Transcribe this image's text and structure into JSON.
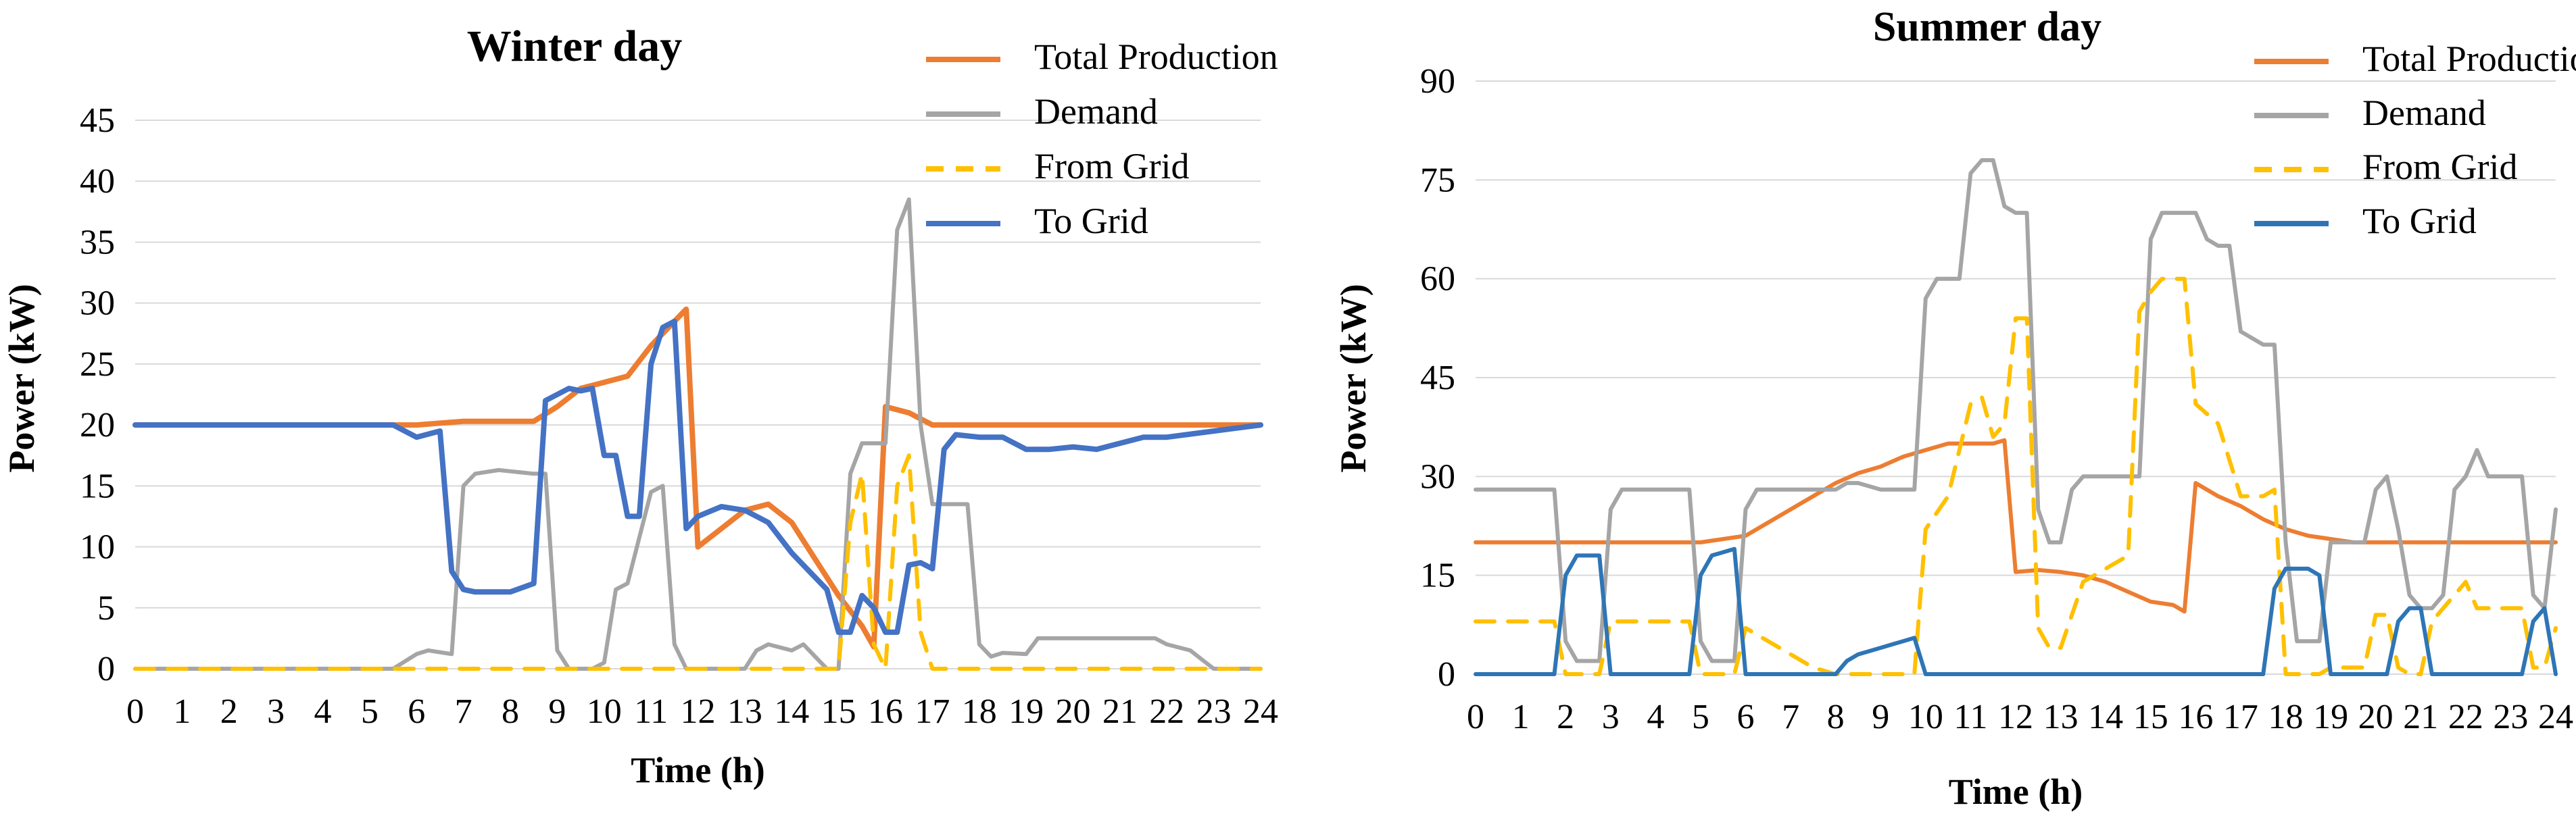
{
  "chart_data": [
    {
      "type": "line",
      "title": "Winter day",
      "xlabel": "Time (h)",
      "ylabel": "Power (kW)",
      "xlim": [
        0,
        24
      ],
      "ylim": [
        0,
        45
      ],
      "yticks": [
        0,
        5,
        10,
        15,
        20,
        25,
        30,
        35,
        40,
        45
      ],
      "xticks": [
        0,
        1,
        2,
        3,
        4,
        5,
        6,
        7,
        8,
        9,
        10,
        11,
        12,
        13,
        14,
        15,
        16,
        17,
        18,
        19,
        20,
        21,
        22,
        23,
        24
      ],
      "grid": true,
      "legend_position": "top-right",
      "series": [
        {
          "name": "Total Production",
          "color": "#ed7d31",
          "dash": "solid",
          "x": [
            0,
            6,
            7,
            8.5,
            9,
            9.5,
            10,
            10.5,
            11,
            11.5,
            11.75,
            12,
            12.5,
            13,
            13.5,
            14,
            14.5,
            15,
            15.5,
            15.75,
            16,
            16.5,
            17,
            18,
            24
          ],
          "y": [
            20,
            20,
            20.3,
            20.3,
            21.5,
            23,
            23.5,
            24,
            26.5,
            28.5,
            29.5,
            10,
            11.5,
            13,
            13.5,
            12,
            9,
            6,
            3.5,
            1.8,
            21.5,
            21,
            20,
            20,
            20
          ]
        },
        {
          "name": "Demand",
          "color": "#a5a5a5",
          "dash": "solid",
          "x": [
            0,
            5.5,
            6,
            6.25,
            6.75,
            7,
            7.25,
            7.75,
            8,
            8.5,
            8.75,
            9,
            9.25,
            9.75,
            10,
            10.25,
            10.5,
            11,
            11.25,
            11.5,
            11.75,
            12,
            13,
            13.25,
            13.5,
            14,
            14.25,
            14.5,
            14.75,
            15,
            15.25,
            15.5,
            15.75,
            16,
            16.25,
            16.5,
            16.75,
            17,
            17.5,
            17.75,
            18,
            18.25,
            18.5,
            19,
            19.25,
            19.75,
            20,
            20.5,
            21,
            21.5,
            21.75,
            22,
            22.5,
            23,
            24
          ],
          "y": [
            0,
            0,
            1.2,
            1.5,
            1.2,
            15,
            16,
            16.3,
            16.2,
            16,
            16,
            1.5,
            0,
            0,
            0.5,
            6.5,
            7,
            14.5,
            15,
            2,
            0,
            0,
            0,
            1.5,
            2,
            1.5,
            2,
            1,
            0,
            0,
            16,
            18.5,
            18.5,
            18.5,
            36,
            38.5,
            20,
            13.5,
            13.5,
            13.5,
            2,
            1,
            1.3,
            1.2,
            2.5,
            2.5,
            2.5,
            2.5,
            2.5,
            2.5,
            2.5,
            2,
            1.5,
            0,
            0
          ]
        },
        {
          "name": "From Grid",
          "color": "#ffc000",
          "dash": "dashed",
          "x": [
            0,
            15,
            15.25,
            15.5,
            15.75,
            16,
            16.25,
            16.5,
            16.75,
            17,
            24
          ],
          "y": [
            0,
            0,
            12,
            16,
            2,
            0,
            15,
            17.5,
            3,
            0,
            0
          ]
        },
        {
          "name": "To Grid",
          "color": "#4472c4",
          "dash": "solid",
          "x": [
            0,
            5.5,
            6,
            6.5,
            6.75,
            7,
            7.25,
            8,
            8.5,
            8.75,
            9,
            9.25,
            9.5,
            9.75,
            10,
            10.25,
            10.5,
            10.75,
            11,
            11.25,
            11.5,
            11.75,
            12,
            12.5,
            13,
            13.5,
            14,
            14.5,
            14.75,
            15,
            15.25,
            15.5,
            15.75,
            16,
            16.25,
            16.5,
            16.75,
            17,
            17.25,
            17.5,
            18,
            18.5,
            19,
            19.5,
            20,
            20.5,
            21,
            21.5,
            22,
            24
          ],
          "y": [
            20,
            20,
            19,
            19.5,
            8,
            6.5,
            6.3,
            6.3,
            7,
            22,
            22.5,
            23,
            22.8,
            23,
            17.5,
            17.5,
            12.5,
            12.5,
            25,
            28,
            28.5,
            11.5,
            12.5,
            13.3,
            13,
            12,
            9.5,
            7.5,
            6.5,
            3,
            3,
            6,
            5,
            3,
            3,
            8.5,
            8.7,
            8.2,
            18,
            19.2,
            19,
            19,
            18,
            18,
            18.2,
            18,
            18.5,
            19,
            19,
            20
          ]
        }
      ]
    },
    {
      "type": "line",
      "title": "Summer day",
      "xlabel": "Time (h)",
      "ylabel": "Power (kW)",
      "xlim": [
        0,
        24
      ],
      "ylim": [
        0,
        90
      ],
      "yticks": [
        0,
        15,
        30,
        45,
        60,
        75,
        90
      ],
      "xticks": [
        0,
        1,
        2,
        3,
        4,
        5,
        6,
        7,
        8,
        9,
        10,
        11,
        12,
        13,
        14,
        15,
        16,
        17,
        18,
        19,
        20,
        21,
        22,
        23,
        24
      ],
      "grid": true,
      "legend_position": "top-right",
      "series": [
        {
          "name": "Total Production",
          "color": "#ed7d31",
          "dash": "solid",
          "x": [
            0,
            5,
            5.5,
            6,
            6.5,
            7,
            7.5,
            8,
            8.5,
            9,
            9.5,
            10,
            10.5,
            11,
            11.5,
            11.75,
            12,
            12.5,
            13,
            13.5,
            14,
            14.5,
            15,
            15.5,
            15.75,
            16,
            16.5,
            17,
            17.5,
            18,
            18.5,
            19,
            19.5,
            20,
            24
          ],
          "y": [
            20,
            20,
            20.5,
            21,
            23,
            25,
            27,
            29,
            30.5,
            31.5,
            33,
            34,
            35,
            35,
            35,
            35.5,
            15.5,
            15.8,
            15.5,
            15,
            14,
            12.5,
            11,
            10.5,
            9.5,
            29,
            27,
            25.5,
            23.5,
            22,
            21,
            20.5,
            20,
            20,
            20
          ]
        },
        {
          "name": "Demand",
          "color": "#a5a5a5",
          "dash": "solid",
          "x": [
            0,
            1.75,
            2,
            2.25,
            2.75,
            3,
            3.25,
            4,
            4.75,
            5,
            5.25,
            5.75,
            6,
            6.25,
            7,
            7.5,
            8,
            8.25,
            8.5,
            9,
            9.25,
            9.5,
            9.75,
            10,
            10.25,
            10.75,
            11,
            11.25,
            11.5,
            11.75,
            12,
            12.25,
            12.5,
            12.75,
            13,
            13.25,
            13.5,
            14,
            14.25,
            14.5,
            14.75,
            15,
            15.25,
            15.75,
            16,
            16.25,
            16.5,
            16.75,
            17,
            17.5,
            17.75,
            18,
            18.25,
            18.5,
            18.75,
            19,
            19.5,
            19.75,
            20,
            20.25,
            20.5,
            20.75,
            21,
            21.25,
            21.5,
            21.75,
            22,
            22.25,
            22.5,
            23,
            23.25,
            23.5,
            23.75,
            24
          ],
          "y": [
            28,
            28,
            5,
            2,
            2,
            25,
            28,
            28,
            28,
            5,
            2,
            2,
            25,
            28,
            28,
            28,
            28,
            29,
            29,
            28,
            28,
            28,
            28,
            57,
            60,
            60,
            76,
            78,
            78,
            71,
            70,
            70,
            25,
            20,
            20,
            28,
            30,
            30,
            30,
            30,
            30,
            66,
            70,
            70,
            70,
            66,
            65,
            65,
            52,
            50,
            50,
            20,
            5,
            5,
            5,
            20,
            20,
            20,
            28,
            30,
            22,
            12,
            10,
            10,
            12,
            28,
            30,
            34,
            30,
            30,
            30,
            12,
            10,
            25
          ]
        },
        {
          "name": "From Grid",
          "color": "#ffc000",
          "dash": "dashed",
          "x": [
            0,
            1.75,
            2,
            2.75,
            3,
            3.25,
            4.75,
            5,
            5.75,
            6,
            6.5,
            7,
            7.5,
            8,
            8.5,
            9,
            9.5,
            9.75,
            10,
            10.5,
            11,
            11.25,
            11.5,
            11.75,
            12,
            12.25,
            12.5,
            12.75,
            13,
            13.5,
            14,
            14.25,
            14.5,
            14.75,
            15,
            15.25,
            15.5,
            15.75,
            16,
            16.5,
            17,
            17.5,
            17.75,
            18,
            18.75,
            19,
            19.5,
            19.75,
            20,
            20.25,
            20.5,
            20.75,
            21,
            21.25,
            21.5,
            21.75,
            22,
            22.25,
            22.5,
            23,
            23.25,
            23.5,
            23.75,
            24
          ],
          "y": [
            8,
            8,
            0,
            0,
            8,
            8,
            8,
            0,
            0,
            7,
            5,
            3,
            1,
            0,
            0,
            0,
            0,
            0,
            22,
            27,
            41,
            42,
            36,
            38,
            54,
            54,
            7,
            4,
            4,
            14,
            16,
            17,
            18,
            55,
            58,
            60,
            60,
            60,
            41,
            38,
            27,
            27,
            28,
            0,
            0,
            1,
            1,
            1,
            9,
            9,
            1,
            0,
            0,
            8,
            10,
            12,
            14,
            10,
            10,
            10,
            10,
            1,
            1,
            7
          ]
        },
        {
          "name": "To Grid",
          "color": "#2e75b6",
          "dash": "solid",
          "x": [
            0,
            1.75,
            2,
            2.25,
            2.75,
            3,
            4.75,
            5,
            5.25,
            5.75,
            6,
            8,
            8.25,
            8.5,
            9,
            9.5,
            9.75,
            10,
            17.5,
            17.75,
            18,
            18.5,
            18.75,
            19,
            20.25,
            20.5,
            20.75,
            21,
            21.25,
            23.25,
            23.5,
            23.75,
            24
          ],
          "y": [
            0,
            0,
            15,
            18,
            18,
            0,
            0,
            15,
            18,
            19,
            0,
            0,
            2,
            3,
            4,
            5,
            5.5,
            0,
            0,
            13,
            16,
            16,
            15,
            0,
            0,
            8,
            10,
            10,
            0,
            0,
            8,
            10,
            0
          ]
        }
      ]
    }
  ]
}
